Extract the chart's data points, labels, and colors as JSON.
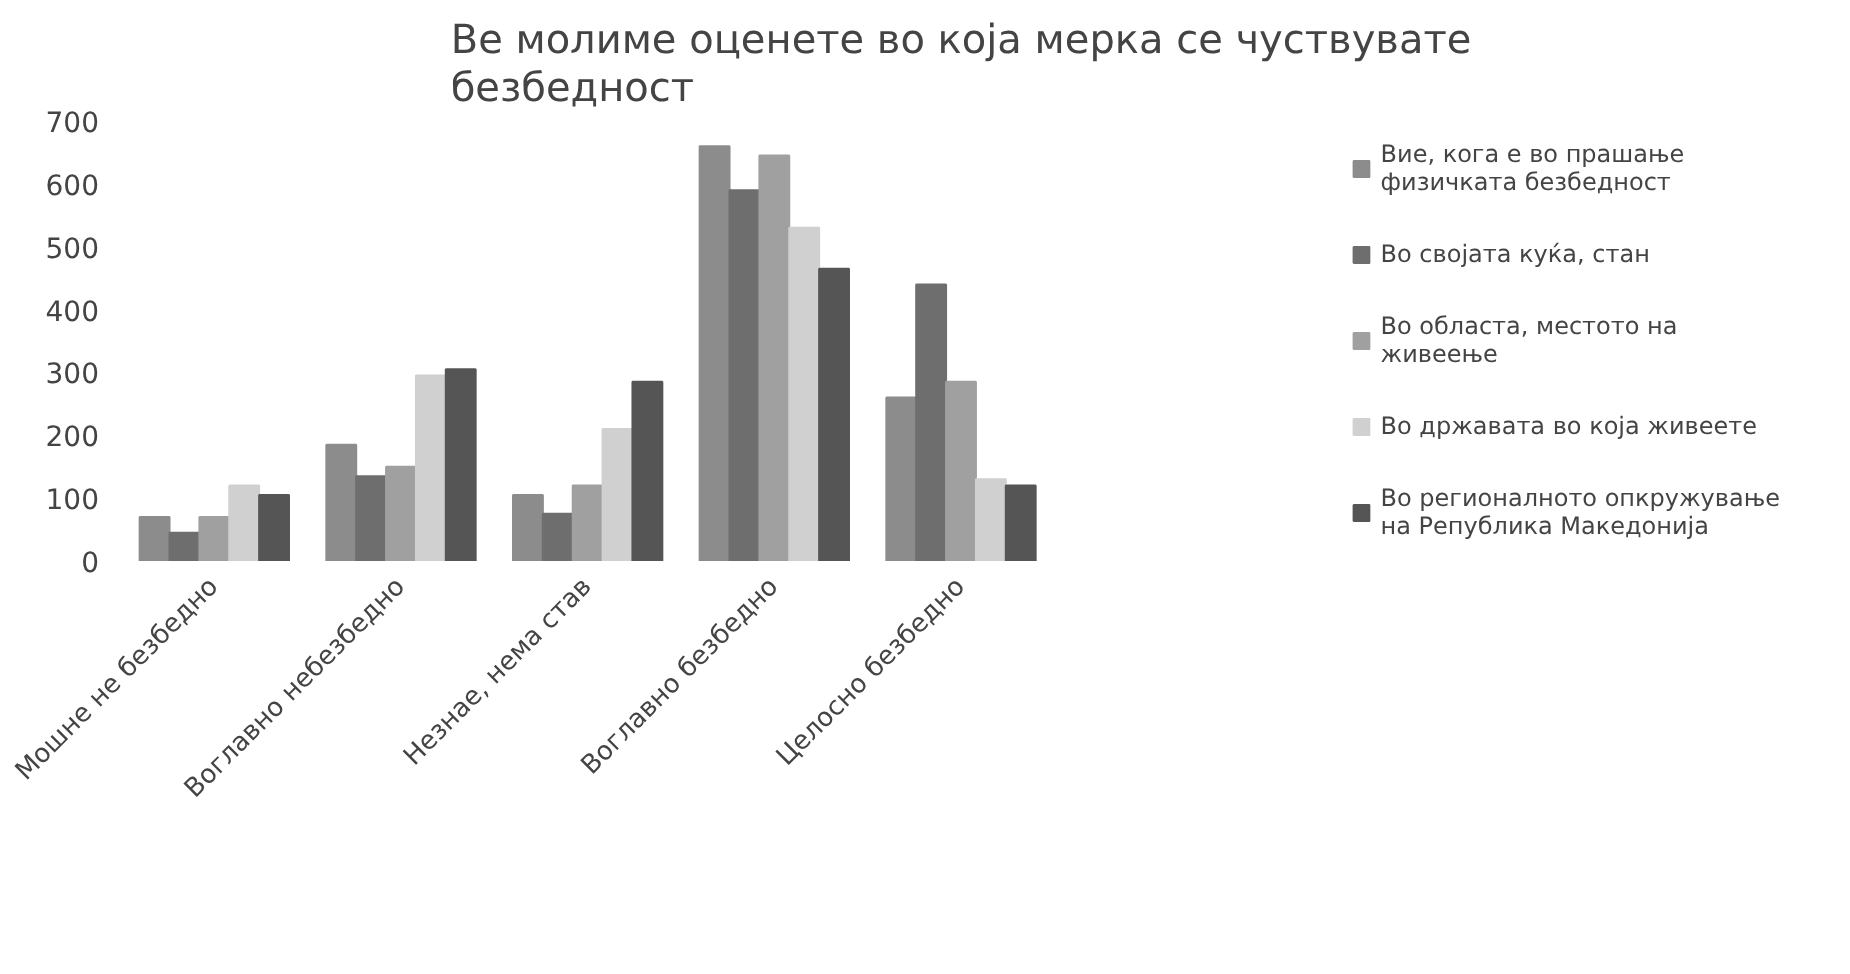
{
  "chart_data": {
    "type": "bar",
    "title": "Ве молиме оценете во која мерка се чуствувате безбедност",
    "categories": [
      "Мошне не безбедно",
      "Воглавно небезбедно",
      "Незнае, нема став",
      "Воглавно безбедно",
      "Целосно безбедно"
    ],
    "series": [
      {
        "name": "Вие, кога е во прашање физичката безбедност",
        "color": "#8c8c8c",
        "values": [
          70,
          185,
          105,
          660,
          260
        ]
      },
      {
        "name": "Во својата куќа, стан",
        "color": "#6e6e6e",
        "values": [
          45,
          135,
          75,
          590,
          440
        ]
      },
      {
        "name": "Во областа, местото на живеење",
        "color": "#a0a0a0",
        "values": [
          70,
          150,
          120,
          645,
          285
        ]
      },
      {
        "name": "Во државата во која живеете",
        "color": "#d0d0d0",
        "values": [
          120,
          295,
          210,
          530,
          130
        ]
      },
      {
        "name": "Во регионалното опкружување на Република Македонија",
        "color": "#555555",
        "values": [
          105,
          305,
          285,
          465,
          120
        ]
      }
    ],
    "ylim": [
      0,
      700
    ],
    "yticks": [
      0,
      100,
      200,
      300,
      400,
      500,
      600,
      700
    ],
    "grid": false,
    "legend": "right"
  }
}
